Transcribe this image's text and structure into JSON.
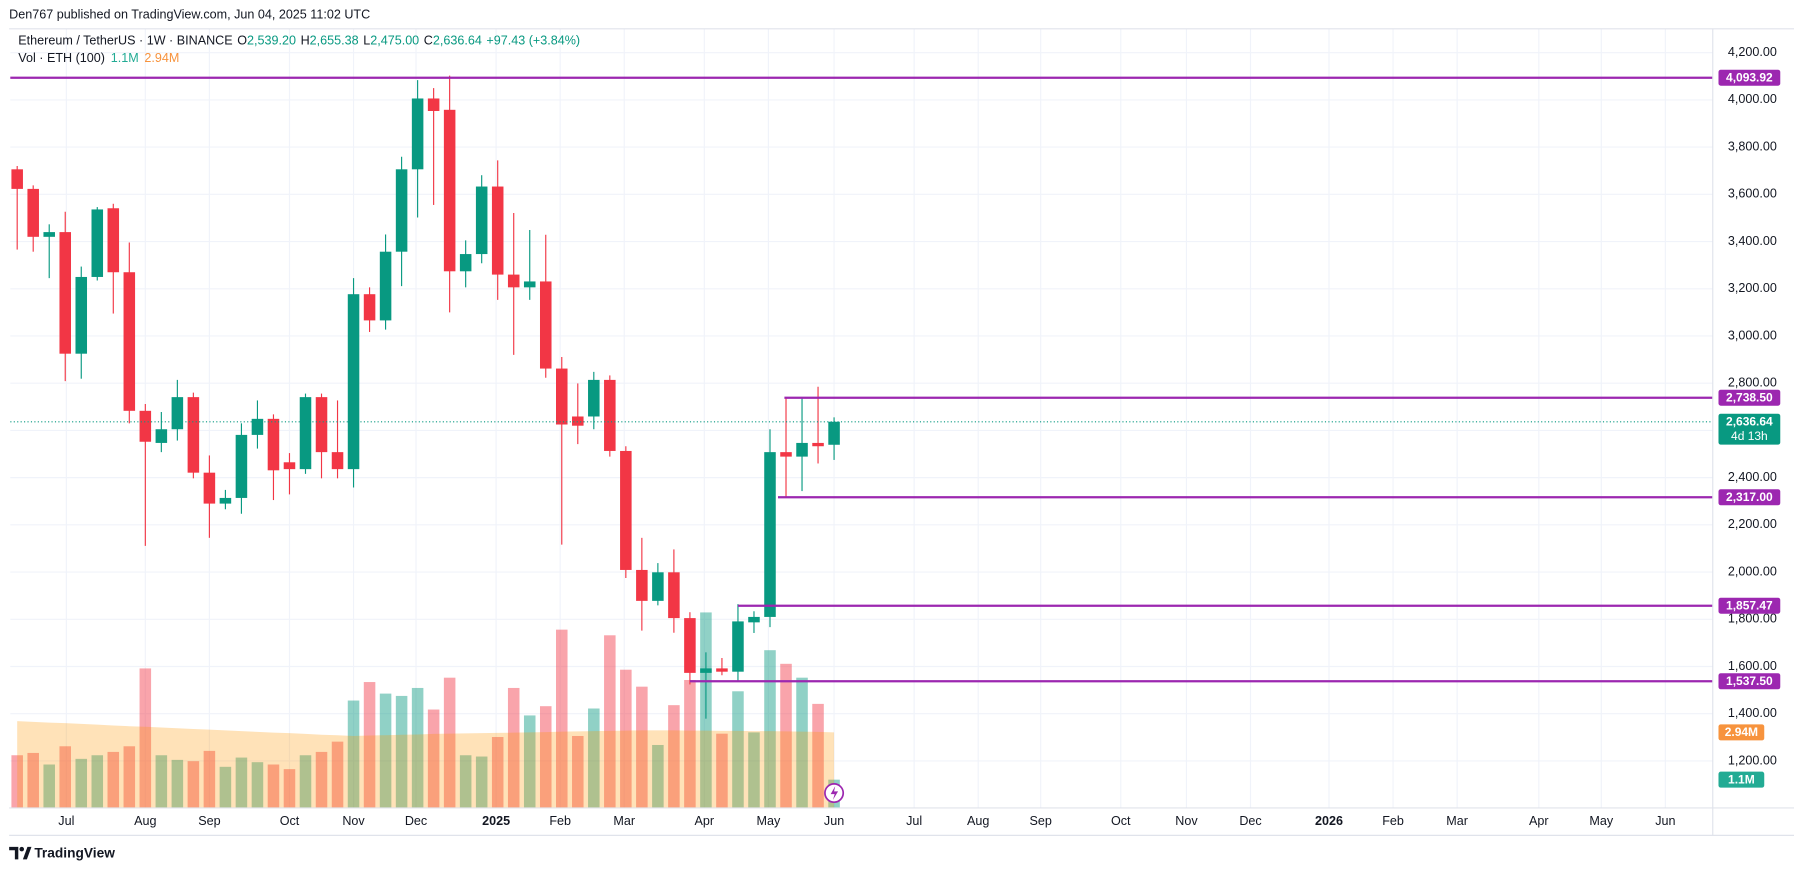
{
  "chart_data": {
    "type": "candlestick",
    "published": "Den767 published on TradingView.com, Jun 04, 2025 11:02 UTC",
    "title": "Ethereum / TetherUS · 1W · BINANCE",
    "summary": [
      {
        "key": "O",
        "value": "2,539.20"
      },
      {
        "key": "H",
        "value": "2,655.38"
      },
      {
        "key": "L",
        "value": "2,475.00"
      },
      {
        "key": "C",
        "value": "2,636.64"
      }
    ],
    "change": "+97.43 (+3.84%)",
    "volume_title": "Vol · ETH (100)",
    "brand": "TradingView",
    "up_color": "#089981",
    "down_color": "#f23645",
    "level_color": "#9c27b0",
    "open": [
      3706,
      3623,
      3420,
      3440,
      2925,
      3250,
      3541,
      3270,
      2683,
      2547,
      2605,
      2741,
      2421,
      2290,
      2314,
      2581,
      2649,
      2465,
      2436,
      2741,
      2508,
      2436,
      3177,
      3066,
      3357,
      3706,
      4006,
      3958,
      3274,
      3347,
      3633,
      3260,
      3206,
      3231,
      2862,
      2659,
      2659,
      2814,
      2513,
      2009,
      1878,
      1999,
      1805,
      1573,
      1592,
      1578,
      1787,
      1810,
      2508,
      2489,
      2547,
      2539.2
    ],
    "high": [
      3720,
      3638,
      3473,
      3526,
      3294,
      3546,
      3560,
      3396,
      2712,
      2678,
      2814,
      2760,
      2494,
      2348,
      2630,
      2727,
      2668,
      2504,
      2756,
      2756,
      2727,
      3245,
      3206,
      3430,
      3759,
      4084,
      4050,
      4103,
      3405,
      3681,
      3744,
      3521,
      3449,
      3429,
      2911,
      2799,
      2848,
      2833,
      2533,
      2145,
      2038,
      2096,
      1830,
      1660,
      1636,
      1864,
      1834,
      2605,
      2741,
      2736,
      2785,
      2655.38
    ],
    "low": [
      3366,
      3357,
      3245,
      2809,
      2819,
      3235,
      3095,
      2630,
      2111,
      2508,
      2557,
      2397,
      2145,
      2266,
      2247,
      2523,
      2305,
      2329,
      2416,
      2397,
      2397,
      2358,
      3017,
      3027,
      3211,
      3502,
      3555,
      3100,
      3206,
      3308,
      3153,
      2920,
      3153,
      2823,
      2116,
      2542,
      2605,
      2489,
      1975,
      1752,
      1859,
      1743,
      1524,
      1379,
      1563,
      1539,
      1742,
      1767,
      2319,
      2343,
      2460,
      2475.0
    ],
    "close": [
      3623,
      3420,
      3440,
      2925,
      3250,
      3536,
      3270,
      2683,
      2552,
      2605,
      2741,
      2421,
      2290,
      2314,
      2581,
      2649,
      2431,
      2436,
      2741,
      2508,
      2436,
      3177,
      3066,
      3357,
      3706,
      4006,
      3953,
      3274,
      3347,
      3633,
      3260,
      3206,
      3231,
      2862,
      2625,
      2620,
      2814,
      2513,
      2009,
      1878,
      1999,
      1805,
      1573,
      1592,
      1578,
      1791,
      1810,
      2508,
      2489,
      2547,
      2533,
      2636.64
    ],
    "volume": [
      2.05,
      2.14,
      1.69,
      2.4,
      1.91,
      2.05,
      2.18,
      2.4,
      5.43,
      2.05,
      1.87,
      1.82,
      2.22,
      1.6,
      1.96,
      1.78,
      1.69,
      1.51,
      2.05,
      2.18,
      2.58,
      4.18,
      4.9,
      4.45,
      4.36,
      4.67,
      3.83,
      5.07,
      2.05,
      2.0,
      2.76,
      4.67,
      3.6,
      3.96,
      6.94,
      2.8,
      3.87,
      6.72,
      5.38,
      4.72,
      2.45,
      4.0,
      4.98,
      7.61,
      2.89,
      4.54,
      2.94,
      6.14,
      5.61,
      5.07,
      4.05,
      1.1
    ],
    "volume_ma": [
      3.38,
      3.35,
      3.32,
      3.3,
      3.27,
      3.24,
      3.21,
      3.18,
      3.16,
      3.13,
      3.1,
      3.07,
      3.05,
      3.02,
      2.99,
      2.96,
      2.93,
      2.91,
      2.88,
      2.85,
      2.83,
      2.8,
      2.82,
      2.83,
      2.85,
      2.86,
      2.88,
      2.89,
      2.9,
      2.91,
      2.92,
      2.93,
      2.94,
      2.95,
      2.97,
      2.98,
      2.99,
      3.0,
      3.01,
      3.02,
      3.02,
      3.02,
      3.01,
      3.01,
      3.0,
      3.0,
      2.99,
      2.99,
      2.98,
      2.97,
      2.96,
      2.94
    ],
    "volume_markers": [
      {
        "value": 1.1,
        "label": "1.1M",
        "color": "#22ab94"
      },
      {
        "value": 2.94,
        "label": "2.94M",
        "color": "#f7933d"
      }
    ],
    "volume_ylim": [
      0,
      31
    ],
    "xlim": [
      -0.43,
      105.86
    ],
    "xticks": [
      {
        "value": 3.07,
        "label": "Jul"
      },
      {
        "value": 8.0,
        "label": "Aug"
      },
      {
        "value": 12.0,
        "label": "Sep"
      },
      {
        "value": 17.0,
        "label": "Oct"
      },
      {
        "value": 21.0,
        "label": "Nov"
      },
      {
        "value": 24.9,
        "label": "Dec"
      },
      {
        "value": 29.9,
        "label": "2025"
      },
      {
        "value": 33.9,
        "label": "Feb"
      },
      {
        "value": 37.9,
        "label": "Mar"
      },
      {
        "value": 42.9,
        "label": "Apr"
      },
      {
        "value": 46.9,
        "label": "May"
      },
      {
        "value": 51.0,
        "label": "Jun"
      },
      {
        "value": 56.0,
        "label": "Jul"
      },
      {
        "value": 60.0,
        "label": "Aug"
      },
      {
        "value": 63.9,
        "label": "Sep"
      },
      {
        "value": 68.9,
        "label": "Oct"
      },
      {
        "value": 73.0,
        "label": "Nov"
      },
      {
        "value": 77.0,
        "label": "Dec"
      },
      {
        "value": 81.9,
        "label": "2026"
      },
      {
        "value": 85.9,
        "label": "Feb"
      },
      {
        "value": 89.9,
        "label": "Mar"
      },
      {
        "value": 95.0,
        "label": "Apr"
      },
      {
        "value": 98.9,
        "label": "May"
      },
      {
        "value": 102.9,
        "label": "Jun"
      }
    ],
    "ylim": [
      1001,
      4374
    ],
    "yticks": [
      {
        "value": 1200,
        "label": "1,200.00"
      },
      {
        "value": 1400,
        "label": "1,400.00"
      },
      {
        "value": 1600,
        "label": "1,600.00"
      },
      {
        "value": 1800,
        "label": "1,800.00"
      },
      {
        "value": 2000,
        "label": "2,000.00"
      },
      {
        "value": 2200,
        "label": "2,200.00"
      },
      {
        "value": 2400,
        "label": "2,400.00"
      },
      {
        "value": 2600,
        "label": "2,600.00"
      },
      {
        "value": 2800,
        "label": "2,800.00"
      },
      {
        "value": 3000,
        "label": "3,000.00"
      },
      {
        "value": 3200,
        "label": "3,200.00"
      },
      {
        "value": 3400,
        "label": "3,400.00"
      },
      {
        "value": 3600,
        "label": "3,600.00"
      },
      {
        "value": 3800,
        "label": "3,800.00"
      },
      {
        "value": 4000,
        "label": "4,000.00"
      },
      {
        "value": 4200,
        "label": "4,200.00"
      }
    ],
    "grid": true,
    "levels": [
      {
        "value": 4093.92,
        "label": "4,093.92",
        "start": -0.43
      },
      {
        "value": 2738.5,
        "label": "2,738.50",
        "start": 47.9
      },
      {
        "value": 2317.0,
        "label": "2,317.00",
        "start": 47.5
      },
      {
        "value": 1857.47,
        "label": "1,857.47",
        "start": 45.0
      },
      {
        "value": 1537.5,
        "label": "1,537.50",
        "start": 42.0
      }
    ],
    "last_price": {
      "value": 2636.64,
      "label": "2,636.64",
      "countdown": "4d 13h",
      "color": "#089981"
    }
  }
}
